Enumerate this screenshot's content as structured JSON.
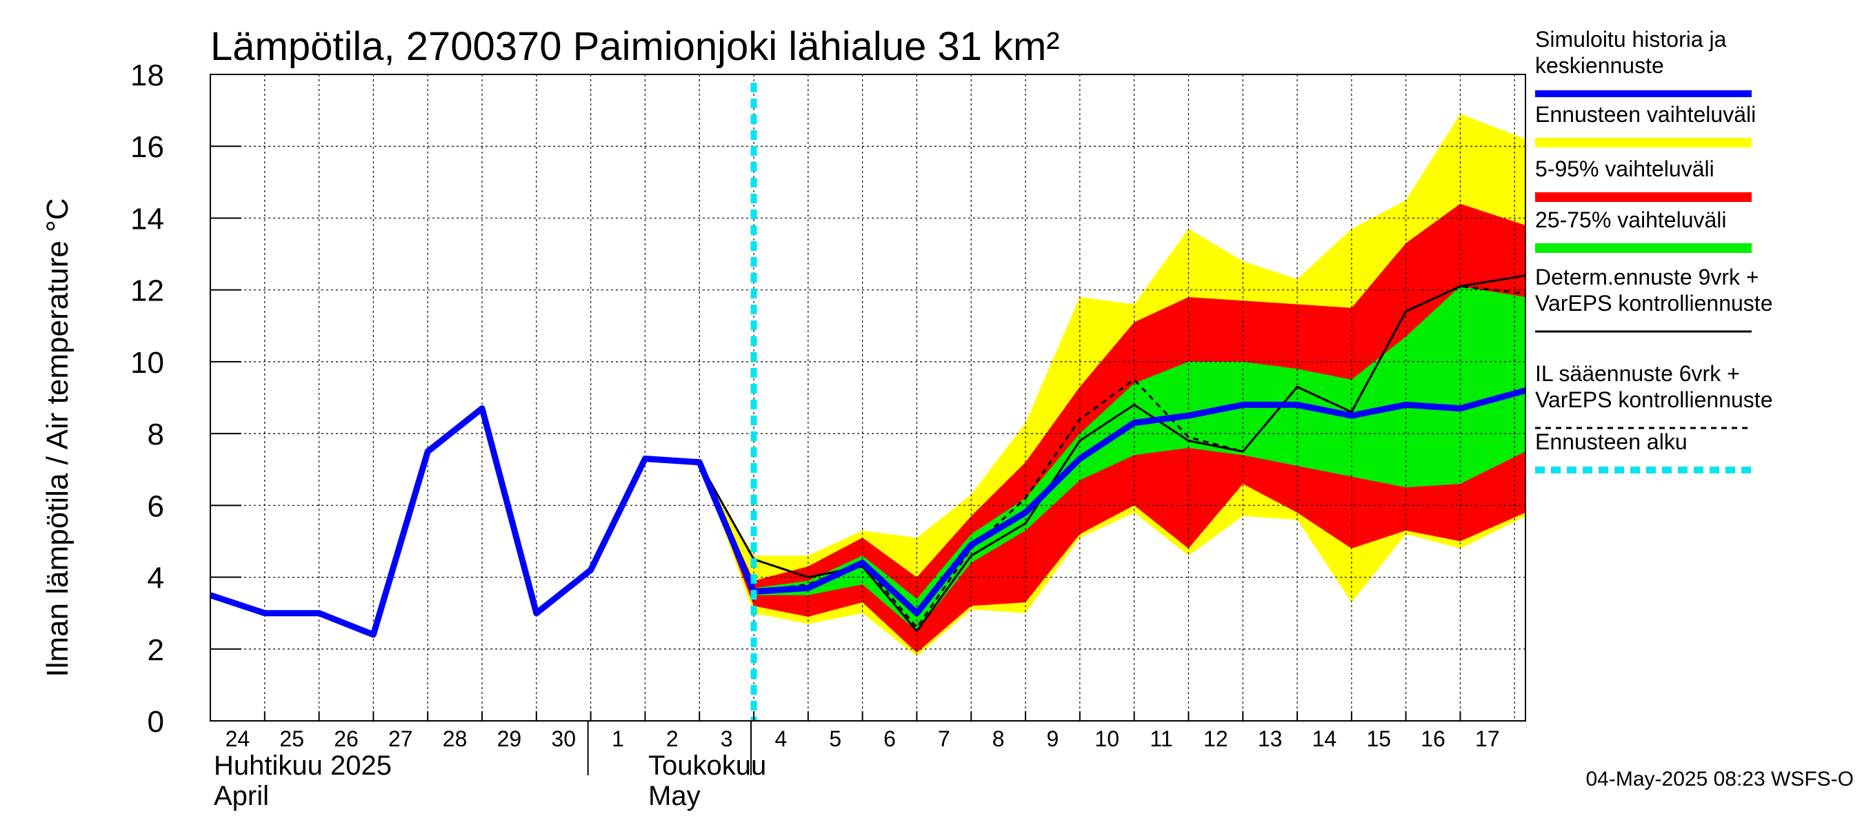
{
  "chart_data": {
    "type": "area",
    "title": "Lämpötila, 2700370 Paimionjoki lähialue 31 km²",
    "ylabel": "Ilman lämpötila / Air temperature    °C",
    "ylim": [
      0,
      18
    ],
    "yticks": [
      "0",
      "2",
      "4",
      "6",
      "8",
      "10",
      "12",
      "14",
      "16",
      "18"
    ],
    "grid": true,
    "x_range": [
      0,
      24.2
    ],
    "day_labels": [
      "24",
      "25",
      "26",
      "27",
      "28",
      "29",
      "30",
      "1",
      "2",
      "3",
      "4",
      "5",
      "6",
      "7",
      "8",
      "9",
      "10",
      "11",
      "12",
      "13",
      "14",
      "15",
      "16",
      "17"
    ],
    "month_labels": [
      {
        "line1": "Huhtikuu  2025",
        "line2": "April"
      },
      {
        "line1": "Toukokuu",
        "line2": "May"
      }
    ],
    "forecast_start_x": 10.0,
    "x": [
      0,
      1,
      2,
      3,
      4,
      5,
      6,
      7,
      8,
      9,
      10,
      11,
      12,
      13,
      14,
      15,
      16,
      17,
      18,
      19,
      20,
      21,
      22,
      23,
      24.2
    ],
    "series": [
      {
        "name": "Simuloitu historia ja keskiennuste",
        "role": "history_mean",
        "x": [
          0,
          1,
          2,
          3,
          4,
          5,
          6,
          7,
          8,
          9,
          10,
          11,
          12,
          13,
          14,
          15,
          16,
          17,
          18,
          19,
          20,
          21,
          22,
          23,
          24.2
        ],
        "values": [
          3.5,
          3.0,
          3.0,
          2.4,
          7.5,
          8.7,
          3.0,
          4.2,
          7.3,
          7.2,
          3.6,
          3.7,
          4.4,
          3.0,
          4.9,
          5.8,
          7.3,
          8.3,
          8.5,
          8.8,
          8.8,
          8.5,
          8.8,
          8.7,
          9.2
        ]
      },
      {
        "name": "Determ.ennuste 9vrk",
        "role": "deterministic",
        "x": [
          9,
          10,
          11,
          12,
          13,
          14,
          15,
          16,
          17,
          18,
          19,
          20,
          21,
          22,
          23,
          24.2
        ],
        "values": [
          7.2,
          4.5,
          4.0,
          4.3,
          2.5,
          4.6,
          5.5,
          7.8,
          8.8,
          7.8,
          7.5,
          9.3,
          8.6,
          11.4,
          12.1,
          12.4
        ]
      },
      {
        "name": "IL sääennuste 6vrk",
        "role": "il_forecast",
        "x": [
          9,
          10,
          11,
          12,
          13,
          14,
          15,
          16,
          17,
          18,
          19,
          20,
          21,
          22,
          23,
          24.2
        ],
        "values": [
          7.2,
          3.6,
          3.8,
          4.4,
          2.6,
          4.8,
          6.2,
          8.4,
          9.5,
          7.9,
          7.5,
          9.3,
          8.6,
          11.4,
          12.1,
          11.9
        ]
      }
    ],
    "bands": {
      "x": [
        9,
        10,
        11,
        12,
        13,
        14,
        15,
        16,
        17,
        18,
        19,
        20,
        21,
        22,
        23,
        24.2
      ],
      "yellow_low": [
        7.2,
        3.0,
        2.7,
        3.0,
        1.8,
        3.1,
        3.0,
        5.1,
        5.8,
        4.6,
        5.7,
        5.6,
        3.3,
        5.2,
        4.8,
        5.7
      ],
      "yellow_high": [
        7.2,
        4.6,
        4.6,
        5.3,
        5.1,
        6.3,
        8.3,
        11.8,
        11.6,
        13.7,
        12.8,
        12.3,
        13.7,
        14.5,
        16.9,
        16.2
      ],
      "red_low": [
        7.2,
        3.2,
        2.9,
        3.3,
        1.9,
        3.2,
        3.3,
        5.2,
        6.0,
        4.8,
        6.6,
        5.8,
        4.8,
        5.3,
        5.0,
        5.8
      ],
      "red_high": [
        7.2,
        3.9,
        4.3,
        5.1,
        4.0,
        5.7,
        7.2,
        9.3,
        11.1,
        11.8,
        11.7,
        11.6,
        11.5,
        13.3,
        14.4,
        13.8
      ],
      "green_low": [
        7.2,
        3.5,
        3.5,
        3.8,
        2.5,
        4.4,
        5.3,
        6.7,
        7.4,
        7.6,
        7.4,
        7.1,
        6.8,
        6.5,
        6.6,
        7.5
      ],
      "green_high": [
        7.2,
        3.7,
        3.9,
        4.6,
        3.4,
        5.2,
        6.2,
        8.0,
        9.4,
        10.0,
        10.0,
        9.8,
        9.5,
        10.7,
        12.1,
        11.8
      ]
    },
    "colors": {
      "history_mean": "#0000ff",
      "yellow": "#ffff00",
      "red": "#ff0000",
      "green": "#00ee00",
      "deterministic": "#000000",
      "il_forecast": "#000000",
      "forecast_start": "#00e5ee",
      "grid": "#000000"
    },
    "legend": [
      {
        "label": "Simuloitu historia ja|keskiennuste",
        "style": "history_mean"
      },
      {
        "label": "Ennusteen vaihteluväli",
        "style": "yellow"
      },
      {
        "label": "5-95% vaihteluväli",
        "style": "red"
      },
      {
        "label": "25-75% vaihteluväli",
        "style": "green"
      },
      {
        "label": "Determ.ennuste 9vrk +|VarEPS kontrolliennuste",
        "style": "deterministic"
      },
      {
        "label": "IL sääennuste 6vrk  +|  VarEPS kontrolliennuste",
        "style": "il_forecast"
      },
      {
        "label": "Ennusteen alku",
        "style": "forecast_start"
      }
    ],
    "legend_position": "right",
    "timestamp": "04-May-2025 08:23 WSFS-O"
  }
}
